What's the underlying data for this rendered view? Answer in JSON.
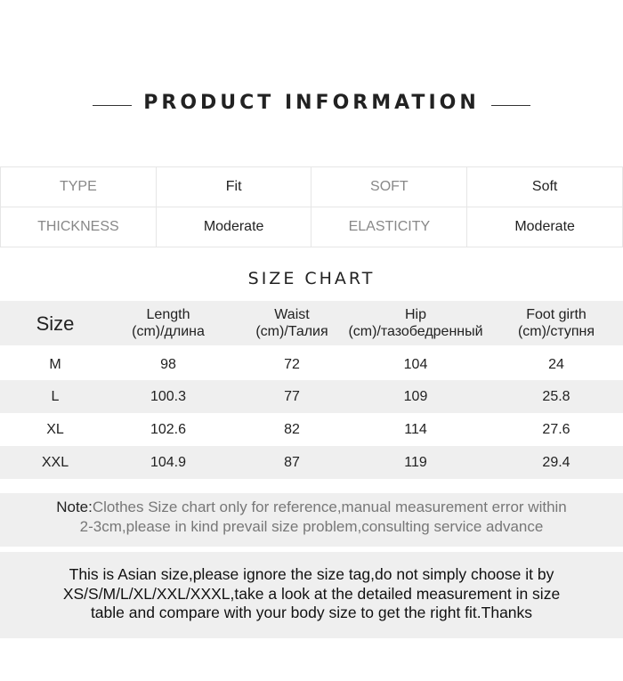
{
  "title": "PRODUCT INFORMATION",
  "info": [
    [
      {
        "k": "TYPE",
        "v": "Fit"
      },
      {
        "k": "SOFT",
        "v": "Soft"
      }
    ],
    [
      {
        "k": "THICKNESS",
        "v": "Moderate"
      },
      {
        "k": "ELASTICITY",
        "v": "Moderate"
      }
    ]
  ],
  "size_chart_title": "SIZE CHART",
  "headers": {
    "size": "Size",
    "length": [
      "Length",
      "(cm)/длина"
    ],
    "waist": [
      "Waist",
      "(cm)/Талия"
    ],
    "hip": [
      "Hip",
      "(cm)/тазобедренный"
    ],
    "foot": [
      "Foot girth",
      "(cm)/ступня"
    ]
  },
  "rows": [
    [
      "M",
      "98",
      "72",
      "104",
      "24"
    ],
    [
      "L",
      "100.3",
      "77",
      "109",
      "25.8"
    ],
    [
      "XL",
      "102.6",
      "82",
      "114",
      "27.6"
    ],
    [
      "XXL",
      "104.9",
      "87",
      "119",
      "29.4"
    ]
  ],
  "note": {
    "label": "Note:",
    "line1": "Clothes Size chart only for reference,manual measurement error within",
    "line2": "2-3cm,please in kind prevail size problem,consulting service advance"
  },
  "asian": [
    "This is Asian size,please ignore the size tag,do not simply choose it by",
    "XS/S/M/L/XL/XXL/XXXL,take a look at the detailed measurement in size",
    "table and compare with your body size to get the right fit.Thanks"
  ]
}
